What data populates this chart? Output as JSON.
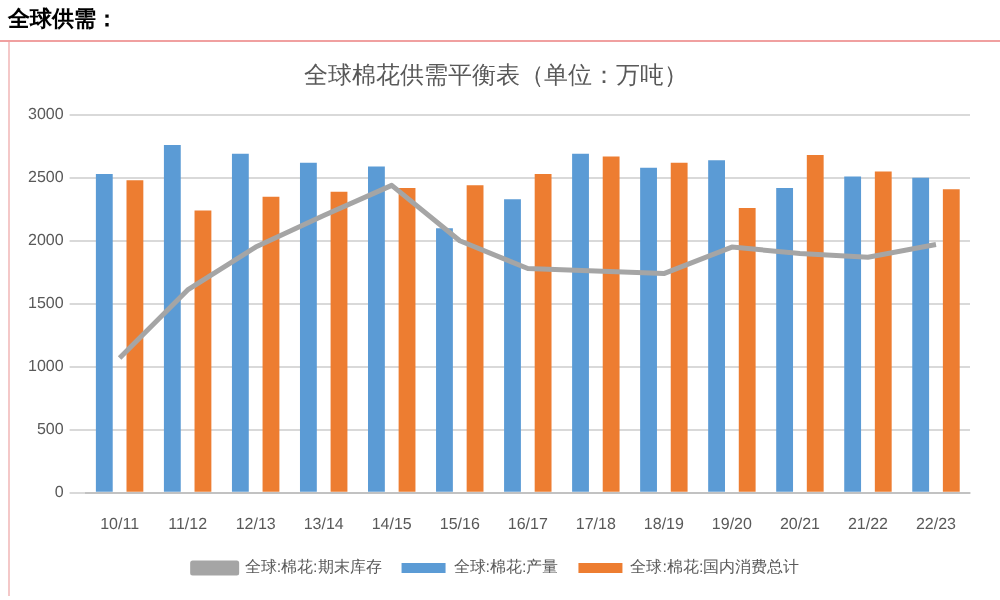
{
  "chart_data": {
    "type": "bar",
    "title": "全球棉花供需平衡表（单位：万吨）",
    "annotations": [
      "全球供需："
    ],
    "categories": [
      "10/11",
      "11/12",
      "12/13",
      "13/14",
      "14/15",
      "15/16",
      "16/17",
      "17/18",
      "18/19",
      "19/20",
      "20/21",
      "21/22",
      "22/23"
    ],
    "series": [
      {
        "name": "全球:棉花:产量",
        "color": "#5b9bd5",
        "values": [
          2530,
          2760,
          2690,
          2620,
          2590,
          2100,
          2330,
          2690,
          2580,
          2640,
          2420,
          2510,
          2500
        ]
      },
      {
        "name": "全球:棉花:国内消费总计",
        "color": "#ed7d31",
        "values": [
          2480,
          2240,
          2350,
          2390,
          2420,
          2440,
          2530,
          2670,
          2620,
          2260,
          2680,
          2550,
          2410
        ]
      },
      {
        "name": "全球:棉花:期末库存",
        "color": "#a5a5a5",
        "type": "line",
        "marker": "none",
        "values": [
          1070,
          1610,
          1950,
          2200,
          2440,
          2000,
          1780,
          1760,
          1740,
          1950,
          1900,
          1870,
          1970
        ]
      }
    ],
    "ylim": [
      0,
      3000
    ],
    "yticks": [
      0,
      500,
      1000,
      1500,
      2000,
      2500,
      3000
    ],
    "grid": "y",
    "legend": "bottom"
  }
}
